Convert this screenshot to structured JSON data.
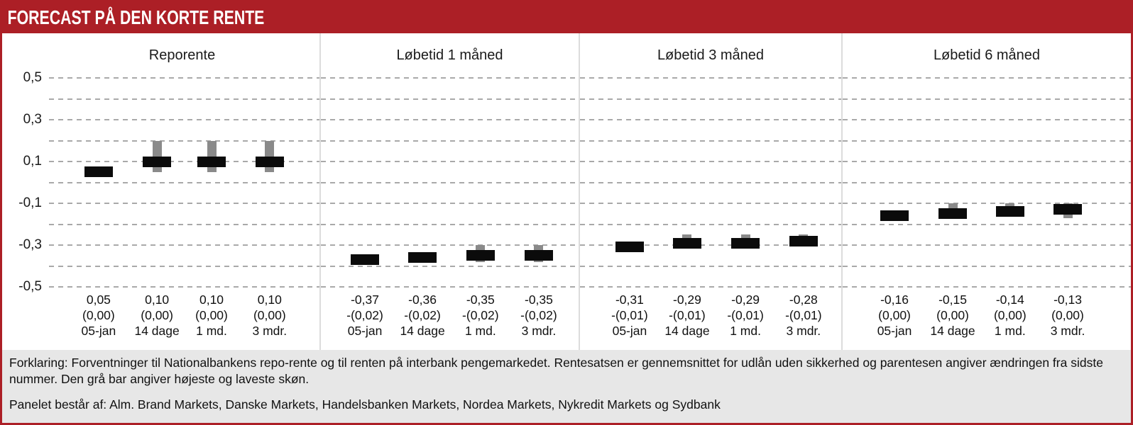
{
  "title": "FORECAST PÅ DEN KORTE RENTE",
  "colors": {
    "accent_red": "#AC1F26",
    "bar_black": "#0b0b0b",
    "range_gray": "#8a8a8a",
    "footer_bg": "#e7e7e7",
    "grid_gray": "#a9a9a9"
  },
  "y_axis": {
    "tick_labels": [
      "0,5",
      "0,3",
      "0,1",
      "-0,1",
      "-0,3",
      "-0,5"
    ],
    "tick_values": [
      0.5,
      0.3,
      0.1,
      -0.1,
      -0.3,
      -0.5
    ]
  },
  "footer": {
    "explanation": "Forklaring: Forventninger til Nationalbankens repo-rente og til renten på interbank pengemarkedet. Rentesatsen er gennemsnittet for udlån uden sikkerhed og parentesen angiver ændringen fra sidste nummer. Den grå bar angiver højeste og laveste skøn.",
    "panel_note": "Panelet består af: Alm. Brand Markets, Danske Markets, Handelsbanken Markets, Nordea Markets, Nykredit Markets og Sydbank"
  },
  "chart_data": {
    "type": "bar",
    "title": "FORECAST PÅ DEN KORTE RENTE",
    "ylim": [
      -0.5,
      0.5
    ],
    "grid_step": 0.1,
    "grid_style": "dashed horizontal",
    "legend_position": "none",
    "bar_meaning": "black bar = average estimate, gray bar = highest and lowest estimate",
    "panels": [
      {
        "title": "Reporente",
        "points": [
          {
            "period": "05-jan",
            "value": 0.05,
            "value_label": "0,05",
            "change_label": "(0,00)",
            "range_high": null,
            "range_low": null
          },
          {
            "period": "14 dage",
            "value": 0.1,
            "value_label": "0,10",
            "change_label": "(0,00)",
            "range_high": 0.2,
            "range_low": 0.05
          },
          {
            "period": "1 md.",
            "value": 0.1,
            "value_label": "0,10",
            "change_label": "(0,00)",
            "range_high": 0.2,
            "range_low": 0.05
          },
          {
            "period": "3 mdr.",
            "value": 0.1,
            "value_label": "0,10",
            "change_label": "(0,00)",
            "range_high": 0.2,
            "range_low": 0.05
          }
        ]
      },
      {
        "title": "Løbetid 1 måned",
        "points": [
          {
            "period": "05-jan",
            "value": -0.37,
            "value_label": "-0,37",
            "change_label": "-(0,02)",
            "range_high": null,
            "range_low": null
          },
          {
            "period": "14 dage",
            "value": -0.36,
            "value_label": "-0,36",
            "change_label": "-(0,02)",
            "range_high": null,
            "range_low": null
          },
          {
            "period": "1 md.",
            "value": -0.35,
            "value_label": "-0,35",
            "change_label": "-(0,02)",
            "range_high": -0.3,
            "range_low": -0.38
          },
          {
            "period": "3 mdr.",
            "value": -0.35,
            "value_label": "-0,35",
            "change_label": "-(0,02)",
            "range_high": -0.3,
            "range_low": -0.38
          }
        ]
      },
      {
        "title": "Løbetid 3 måned",
        "points": [
          {
            "period": "05-jan",
            "value": -0.31,
            "value_label": "-0,31",
            "change_label": "-(0,01)",
            "range_high": null,
            "range_low": null
          },
          {
            "period": "14 dage",
            "value": -0.29,
            "value_label": "-0,29",
            "change_label": "-(0,01)",
            "range_high": -0.25,
            "range_low": -0.31
          },
          {
            "period": "1 md.",
            "value": -0.29,
            "value_label": "-0,29",
            "change_label": "-(0,01)",
            "range_high": -0.25,
            "range_low": -0.31
          },
          {
            "period": "3 mdr.",
            "value": -0.28,
            "value_label": "-0,28",
            "change_label": "-(0,01)",
            "range_high": -0.25,
            "range_low": -0.3
          }
        ]
      },
      {
        "title": "Løbetid 6 måned",
        "points": [
          {
            "period": "05-jan",
            "value": -0.16,
            "value_label": "-0,16",
            "change_label": "(0,00)",
            "range_high": null,
            "range_low": null
          },
          {
            "period": "14 dage",
            "value": -0.15,
            "value_label": "-0,15",
            "change_label": "(0,00)",
            "range_high": -0.1,
            "range_low": -0.17
          },
          {
            "period": "1 md.",
            "value": -0.14,
            "value_label": "-0,14",
            "change_label": "(0,00)",
            "range_high": -0.1,
            "range_low": -0.16
          },
          {
            "period": "3 mdr.",
            "value": -0.13,
            "value_label": "-0,13",
            "change_label": "(0,00)",
            "range_high": -0.1,
            "range_low": -0.17
          }
        ]
      }
    ]
  }
}
